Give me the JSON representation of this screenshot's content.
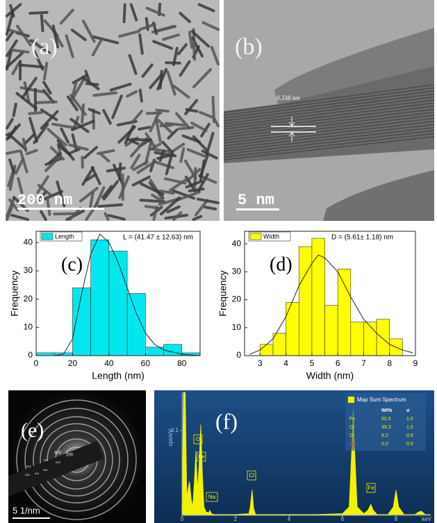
{
  "panels": {
    "a": {
      "label": "(a)",
      "scale": "200 nm"
    },
    "b": {
      "label": "(b)",
      "scale": "5 nm",
      "spacing": "0.338 nm"
    },
    "e": {
      "label": "(e)",
      "scale": "5 1/nm",
      "rings": [
        "400",
        "200",
        "321",
        "220",
        "332",
        "202",
        "411",
        "431"
      ]
    }
  },
  "chart_data": [
    {
      "type": "histogram",
      "panel_label": "(c)",
      "annotation": "L = (41.47 ± 12.63) nm",
      "x_label": "Length (nm)",
      "y_label": "Frequency",
      "bins": [
        0,
        10,
        20,
        30,
        40,
        50,
        60,
        70,
        80,
        90
      ],
      "series": [
        {
          "name": "Length",
          "color": "#00e8ee",
          "values": [
            1,
            1,
            24,
            41,
            37,
            22,
            3,
            4,
            1
          ]
        }
      ],
      "fit": {
        "x": [
          10,
          15,
          20,
          25,
          30,
          35,
          40,
          45,
          50,
          55,
          60,
          65,
          70,
          80,
          90
        ],
        "values": [
          0,
          0.5,
          6,
          22,
          36,
          43,
          40,
          33,
          24,
          15,
          8,
          4,
          2,
          0.5,
          0
        ]
      },
      "xlim": [
        0,
        90
      ],
      "ylim": [
        0,
        44
      ],
      "xticks": [
        0,
        20,
        40,
        60,
        80
      ],
      "yticks": [
        0,
        10,
        20,
        30,
        40
      ]
    },
    {
      "type": "histogram",
      "panel_label": "(d)",
      "annotation": "D = (5.61± 1.18) nm",
      "x_label": "Width (nm)",
      "y_label": "Frequency",
      "bins": [
        3,
        3.5,
        4,
        4.5,
        5,
        5.5,
        6,
        6.5,
        7,
        7.5,
        8,
        8.5
      ],
      "series": [
        {
          "name": "Width",
          "color": "#ffff00",
          "values": [
            4,
            8,
            19,
            39,
            42,
            18,
            31,
            12,
            12,
            13,
            6
          ]
        }
      ],
      "fit": {
        "x": [
          2.6,
          3,
          3.5,
          4,
          4.5,
          5,
          5.25,
          5.5,
          6,
          6.5,
          7,
          7.5,
          8,
          8.5,
          8.9
        ],
        "values": [
          0.5,
          2,
          6,
          14,
          25,
          33,
          36,
          35,
          30,
          21,
          13,
          8,
          4,
          2,
          1
        ]
      },
      "xlim": [
        2.4,
        9
      ],
      "ylim": [
        0,
        44.5
      ],
      "xticks": [
        3,
        4,
        5,
        6,
        7,
        8,
        9
      ],
      "yticks": [
        0,
        10,
        20,
        30,
        40
      ]
    },
    {
      "type": "spectrum",
      "panel_label": "(f)",
      "x_label": "keV",
      "y_label": "cps/eV",
      "color": "#f2f200",
      "x": [
        0,
        0.05,
        0.12,
        0.18,
        0.22,
        0.28,
        0.34,
        0.4,
        0.46,
        0.52,
        0.58,
        0.64,
        0.7,
        0.76,
        0.82,
        0.9,
        1.0,
        1.04,
        1.1,
        1.2,
        1.5,
        2.0,
        2.5,
        2.55,
        2.62,
        2.68,
        2.75,
        3.0,
        4.0,
        5.0,
        6.0,
        6.25,
        6.35,
        6.4,
        6.45,
        6.55,
        6.8,
        6.95,
        7.06,
        7.15,
        7.3,
        7.7,
        7.9,
        8.0,
        8.1,
        8.3,
        8.7,
        8.85,
        8.95,
        9.1,
        9.3
      ],
      "values": [
        0,
        0.145,
        0.145,
        0.02,
        0.03,
        0.04,
        0.02,
        0.01,
        0.04,
        0.076,
        0.03,
        0.06,
        0.107,
        0.05,
        0.01,
        0.004,
        0.003,
        0.006,
        0.002,
        0.001,
        0.001,
        0.001,
        0.002,
        0.01,
        0.03,
        0.008,
        0.001,
        0.001,
        0.001,
        0.001,
        0.002,
        0.01,
        0.08,
        0.125,
        0.08,
        0.01,
        0.002,
        0.006,
        0.013,
        0.006,
        0.001,
        0.001,
        0.01,
        0.03,
        0.01,
        0.001,
        0.001,
        0.004,
        0.005,
        0.001,
        0.001
      ],
      "xlim": [
        0,
        9.3
      ],
      "ylim": [
        0,
        0.145
      ],
      "xticks": [
        0,
        2,
        4,
        6,
        8
      ],
      "yticks": [
        0.1
      ],
      "peak_labels": [
        "Cl",
        "O",
        "Fe",
        "Na",
        "Cl",
        "Fe"
      ],
      "table": {
        "title": "Map Sum Spectrum",
        "columns": [
          "Wt%",
          "σ"
        ],
        "rows": [
          [
            "Fe",
            "52.5",
            "1.0"
          ],
          [
            "Cl",
            "39.3",
            "1.0"
          ],
          [
            "O",
            "8.2",
            "0.5"
          ],
          [
            "Na",
            "0.0",
            "0.0"
          ]
        ]
      }
    }
  ]
}
